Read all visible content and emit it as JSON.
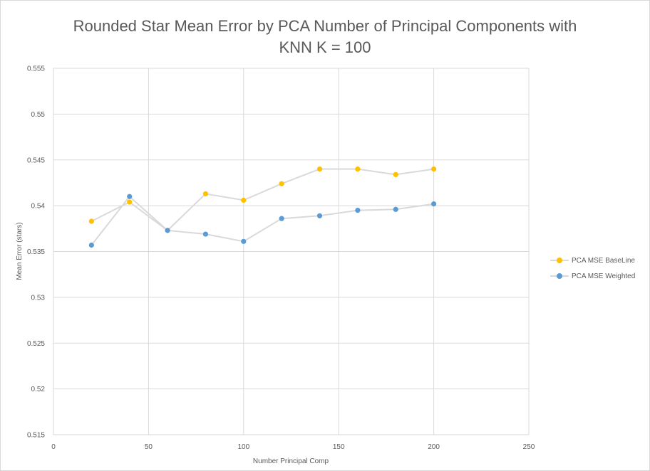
{
  "chart_data": {
    "type": "line",
    "title_line1": "Rounded Star Mean Error by PCA Number of Principal Components with",
    "title_line2": "KNN K = 100",
    "xlabel": "Number  Principal Comp",
    "ylabel": "Mean Error (stars)",
    "xlim": [
      0,
      250
    ],
    "ylim": [
      0.515,
      0.555
    ],
    "x_ticks": [
      0,
      50,
      100,
      150,
      200,
      250
    ],
    "y_ticks": [
      0.515,
      0.52,
      0.525,
      0.53,
      0.535,
      0.54,
      0.545,
      0.55,
      0.555
    ],
    "grid": true,
    "legend_position": "right",
    "series": [
      {
        "name": "PCA MSE BaseLine",
        "color": "#FFC000",
        "x": [
          20,
          40,
          60,
          80,
          100,
          120,
          140,
          160,
          180,
          200
        ],
        "y": [
          0.5383,
          0.5404,
          0.5373,
          0.5413,
          0.5406,
          0.5424,
          0.544,
          0.544,
          0.5434,
          0.544
        ]
      },
      {
        "name": "PCA MSE Weighted",
        "color": "#5B9BD5",
        "x": [
          20,
          40,
          60,
          80,
          100,
          120,
          140,
          160,
          180,
          200
        ],
        "y": [
          0.5357,
          0.541,
          0.5373,
          0.5369,
          0.5361,
          0.5386,
          0.5389,
          0.5395,
          0.5396,
          0.5402
        ]
      }
    ]
  }
}
